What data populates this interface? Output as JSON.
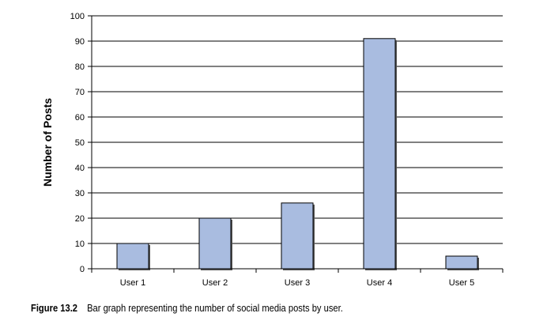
{
  "chart_data": {
    "type": "bar",
    "categories": [
      "User 1",
      "User 2",
      "User 3",
      "User 4",
      "User 5"
    ],
    "values": [
      10,
      20,
      26,
      91,
      5
    ],
    "title": "",
    "xlabel": "",
    "ylabel": "Number of Posts",
    "ylim": [
      0,
      100
    ],
    "yticks": [
      0,
      10,
      20,
      30,
      40,
      50,
      60,
      70,
      80,
      90,
      100
    ],
    "grid": true,
    "legend": "none",
    "bar_color": "#a9bce0",
    "bar_edge_color": "#000000"
  },
  "caption": {
    "figure_label": "Figure 13.2",
    "text": "Bar graph representing the number of social media posts by user."
  }
}
